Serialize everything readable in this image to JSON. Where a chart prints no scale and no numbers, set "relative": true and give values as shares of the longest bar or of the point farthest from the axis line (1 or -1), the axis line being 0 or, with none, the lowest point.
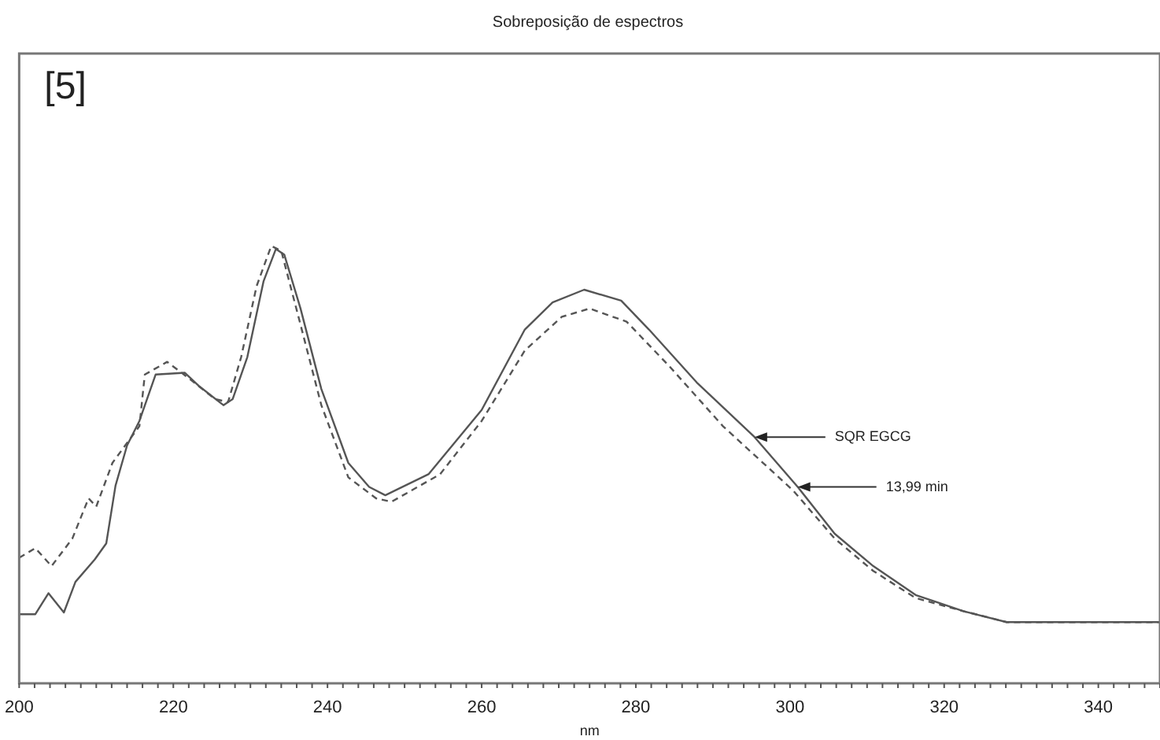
{
  "chart_data": {
    "type": "line",
    "title": "Sobreposição de espectros",
    "xlabel": "nm",
    "relative": true,
    "xlim": [
      200,
      348
    ],
    "xticks": [
      200,
      220,
      240,
      260,
      280,
      300,
      320,
      340
    ],
    "grid": false,
    "legend": false,
    "marker": "none",
    "annotations": [
      "[5]",
      {
        "text": "SQR EGCG",
        "x": 295.4,
        "y": 0.563
      },
      {
        "text": "13,99 min",
        "x": 301,
        "y": 0.449
      }
    ],
    "series": [
      {
        "color": "#555555",
        "line_style": "solid",
        "x": [
          200,
          202.1,
          203.8,
          205.8,
          207.3,
          209.8,
          211.3,
          212.5,
          214,
          215.6,
          217.7,
          221.5,
          223.3,
          226.5,
          227.7,
          229.6,
          231.7,
          233.3,
          234.4,
          236.5,
          239.2,
          242.7,
          245.4,
          247.5,
          253.1,
          260,
          265.6,
          269.2,
          273.3,
          278.1,
          281.7,
          287.9,
          295.4,
          301,
          305.8,
          310.8,
          316.3,
          322.5,
          328.1,
          332.3,
          348
        ],
        "values": [
          0.158,
          0.158,
          0.206,
          0.162,
          0.232,
          0.283,
          0.32,
          0.452,
          0.544,
          0.6,
          0.706,
          0.71,
          0.68,
          0.636,
          0.65,
          0.746,
          0.919,
          0.993,
          0.98,
          0.857,
          0.673,
          0.504,
          0.449,
          0.43,
          0.478,
          0.625,
          0.809,
          0.871,
          0.9,
          0.875,
          0.809,
          0.688,
          0.563,
          0.449,
          0.342,
          0.268,
          0.202,
          0.165,
          0.14,
          0.14,
          0.14
        ]
      },
      {
        "color": "#555555",
        "line_style": "dashed",
        "x": [
          200,
          202.1,
          204.2,
          206.9,
          209,
          210,
          212.1,
          215.6,
          216.3,
          219.2,
          221.9,
          225.4,
          227.1,
          228.8,
          230.8,
          232.7,
          234,
          236.5,
          239.2,
          242.7,
          246.3,
          248.3,
          254.6,
          260,
          265.6,
          270.4,
          274,
          278.8,
          284.4,
          291.3,
          300.4,
          305.8,
          310.8,
          316.3,
          322.5,
          328.1,
          348
        ],
        "values": [
          0.287,
          0.309,
          0.268,
          0.331,
          0.423,
          0.404,
          0.504,
          0.588,
          0.706,
          0.735,
          0.699,
          0.65,
          0.643,
          0.746,
          0.908,
          1,
          0.989,
          0.82,
          0.636,
          0.471,
          0.423,
          0.415,
          0.478,
          0.6,
          0.761,
          0.838,
          0.857,
          0.827,
          0.724,
          0.588,
          0.441,
          0.331,
          0.257,
          0.195,
          0.165,
          0.14,
          0.14
        ]
      }
    ]
  }
}
